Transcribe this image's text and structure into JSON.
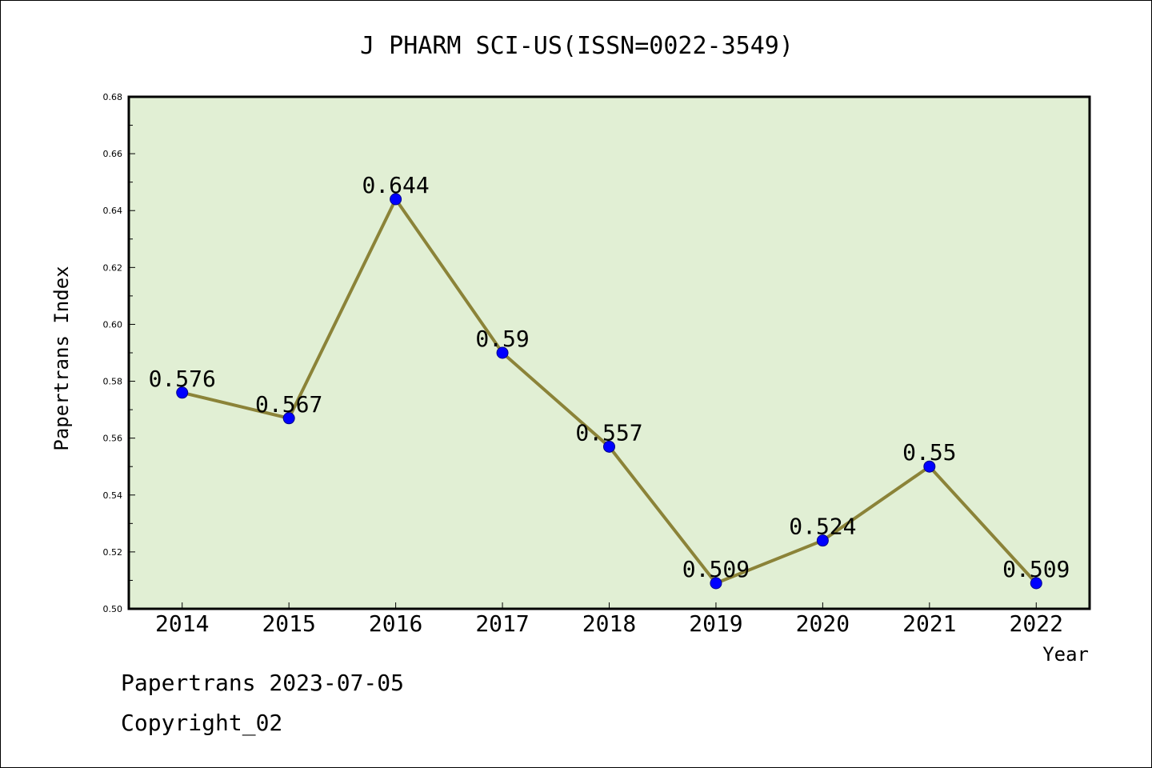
{
  "chart_data": {
    "type": "line",
    "title": "J PHARM SCI-US(ISSN=0022-3549)",
    "xlabel": "Year",
    "ylabel": "Papertrans Index",
    "categories": [
      "2014",
      "2015",
      "2016",
      "2017",
      "2018",
      "2019",
      "2020",
      "2021",
      "2022"
    ],
    "series": [
      {
        "values": [
          0.576,
          0.567,
          0.644,
          0.59,
          0.557,
          0.509,
          0.524,
          0.55,
          0.509
        ],
        "labels": [
          "0.576",
          "0.567",
          "0.644",
          "0.59",
          "0.557",
          "0.509",
          "0.524",
          "0.55",
          "0.509"
        ]
      }
    ],
    "ylim": [
      0.5,
      0.68
    ],
    "yticks": [
      "0.50",
      "0.52",
      "0.54",
      "0.56",
      "0.58",
      "0.60",
      "0.62",
      "0.64",
      "0.66",
      "0.68"
    ],
    "grid": false,
    "colors": {
      "plot_background": "#e1efd4",
      "line": "#8b8338",
      "marker": "#0000ff"
    }
  },
  "footer": {
    "date_line": "Papertrans 2023-07-05",
    "copyright": "Copyright_02"
  }
}
